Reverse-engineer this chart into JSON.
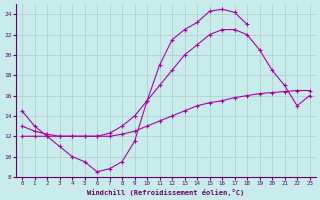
{
  "xlabel": "Windchill (Refroidissement éolien,°C)",
  "bg_color": "#c8ecec",
  "line_color": "#aa00aa",
  "grid_color": "#b0c8c8",
  "xlim": [
    -0.5,
    23.5
  ],
  "ylim": [
    8,
    25
  ],
  "xticks": [
    0,
    1,
    2,
    3,
    4,
    5,
    6,
    7,
    8,
    9,
    10,
    11,
    12,
    13,
    14,
    15,
    16,
    17,
    18,
    19,
    20,
    21,
    22,
    23
  ],
  "yticks": [
    8,
    10,
    12,
    14,
    16,
    18,
    20,
    22,
    24
  ],
  "curve1_x": [
    0,
    1,
    2,
    3,
    4,
    5,
    6,
    7,
    8,
    9,
    10,
    11,
    12,
    13,
    14,
    15,
    16,
    17,
    18
  ],
  "curve1_y": [
    14.5,
    13.0,
    12.0,
    11.0,
    10.0,
    9.5,
    8.5,
    8.8,
    9.5,
    11.5,
    15.5,
    19.0,
    21.5,
    22.5,
    23.2,
    24.3,
    24.5,
    24.2,
    23.0
  ],
  "curve2_x": [
    0,
    1,
    2,
    3,
    4,
    5,
    6,
    7,
    8,
    9,
    10,
    11,
    12,
    13,
    14,
    15,
    16,
    17,
    18,
    19,
    20,
    21,
    22,
    23
  ],
  "curve2_y": [
    13.0,
    12.5,
    12.2,
    12.0,
    12.0,
    12.0,
    12.0,
    12.3,
    13.0,
    14.0,
    15.5,
    17.0,
    18.5,
    20.0,
    21.0,
    22.0,
    22.5,
    22.5,
    22.0,
    20.5,
    18.5,
    17.0,
    15.0,
    16.0
  ],
  "curve3_x": [
    0,
    1,
    2,
    3,
    4,
    5,
    6,
    7,
    8,
    9,
    10,
    11,
    12,
    13,
    14,
    15,
    16,
    17,
    18,
    19,
    20,
    21,
    22,
    23
  ],
  "curve3_y": [
    12.0,
    12.0,
    12.0,
    12.0,
    12.0,
    12.0,
    12.0,
    12.0,
    12.2,
    12.5,
    13.0,
    13.5,
    14.0,
    14.5,
    15.0,
    15.3,
    15.5,
    15.8,
    16.0,
    16.2,
    16.3,
    16.4,
    16.5,
    16.5
  ]
}
